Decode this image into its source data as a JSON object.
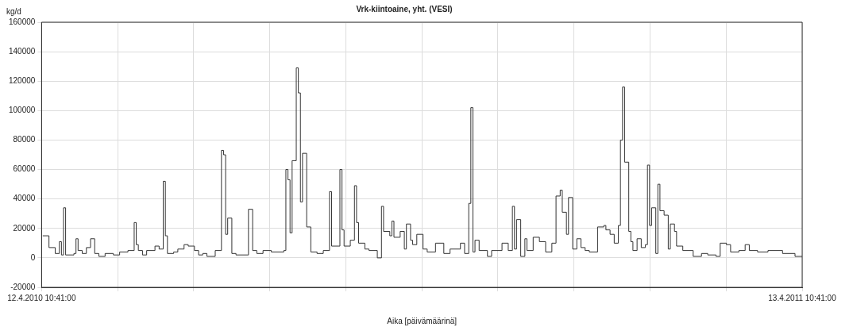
{
  "chart_data": {
    "type": "step",
    "title": "Vrk-kiintoaine, yht. (VESI)",
    "xlabel": "Aika [päivämäärinä]",
    "ylabel": "kg/d",
    "x": [
      "2010-04-13",
      "2010-04-16",
      "2010-04-19",
      "2010-04-21",
      "2010-04-22",
      "2010-04-23",
      "2010-04-24",
      "2010-04-28",
      "2010-04-29",
      "2010-04-30",
      "2010-05-02",
      "2010-05-04",
      "2010-05-06",
      "2010-05-08",
      "2010-05-10",
      "2010-05-13",
      "2010-05-17",
      "2010-05-20",
      "2010-05-24",
      "2010-05-27",
      "2010-05-28",
      "2010-05-29",
      "2010-05-31",
      "2010-06-02",
      "2010-06-06",
      "2010-06-08",
      "2010-06-10",
      "2010-06-11",
      "2010-06-12",
      "2010-06-15",
      "2010-06-17",
      "2010-06-20",
      "2010-06-22",
      "2010-06-25",
      "2010-06-27",
      "2010-06-29",
      "2010-07-01",
      "2010-07-05",
      "2010-07-08",
      "2010-07-09",
      "2010-07-10",
      "2010-07-11",
      "2010-07-13",
      "2010-07-15",
      "2010-07-21",
      "2010-07-23",
      "2010-07-25",
      "2010-07-28",
      "2010-08-01",
      "2010-08-07",
      "2010-08-08",
      "2010-08-09",
      "2010-08-10",
      "2010-08-11",
      "2010-08-13",
      "2010-08-14",
      "2010-08-15",
      "2010-08-16",
      "2010-08-18",
      "2010-08-20",
      "2010-08-23",
      "2010-08-26",
      "2010-08-29",
      "2010-08-30",
      "2010-09-03",
      "2010-09-04",
      "2010-09-05",
      "2010-09-08",
      "2010-09-10",
      "2010-09-11",
      "2010-09-12",
      "2010-09-15",
      "2010-09-17",
      "2010-09-21",
      "2010-09-23",
      "2010-09-24",
      "2010-09-27",
      "2010-09-28",
      "2010-09-29",
      "2010-10-02",
      "2010-10-04",
      "2010-10-05",
      "2010-10-07",
      "2010-10-08",
      "2010-10-10",
      "2010-10-13",
      "2010-10-15",
      "2010-10-19",
      "2010-10-23",
      "2010-10-26",
      "2010-10-31",
      "2010-11-02",
      "2010-11-04",
      "2010-11-05",
      "2010-11-06",
      "2010-11-07",
      "2010-11-09",
      "2010-11-13",
      "2010-11-15",
      "2010-11-20",
      "2010-11-23",
      "2010-11-25",
      "2010-11-26",
      "2010-11-27",
      "2010-11-29",
      "2010-12-01",
      "2010-12-02",
      "2010-12-05",
      "2010-12-08",
      "2010-12-11",
      "2010-12-14",
      "2010-12-16",
      "2010-12-18",
      "2010-12-19",
      "2010-12-21",
      "2010-12-22",
      "2010-12-24",
      "2010-12-26",
      "2010-12-28",
      "2010-12-30",
      "2011-01-01",
      "2011-01-05",
      "2011-01-08",
      "2011-01-09",
      "2011-01-11",
      "2011-01-13",
      "2011-01-15",
      "2011-01-16",
      "2011-01-17",
      "2011-01-18",
      "2011-01-20",
      "2011-01-21",
      "2011-01-22",
      "2011-01-24",
      "2011-01-26",
      "2011-01-28",
      "2011-01-29",
      "2011-01-30",
      "2011-01-31",
      "2011-02-02",
      "2011-02-03",
      "2011-02-04",
      "2011-02-06",
      "2011-02-08",
      "2011-02-09",
      "2011-02-11",
      "2011-02-12",
      "2011-02-15",
      "2011-02-20",
      "2011-02-24",
      "2011-02-27",
      "2011-03-03",
      "2011-03-05",
      "2011-03-08",
      "2011-03-10",
      "2011-03-14",
      "2011-03-17",
      "2011-03-19",
      "2011-03-23",
      "2011-03-28",
      "2011-04-04",
      "2011-04-10",
      "2011-04-13T10:41"
    ],
    "series": [
      {
        "color": "#333333",
        "values": [
          15000,
          7000,
          3000,
          11000,
          2000,
          34000,
          2000,
          3000,
          13000,
          5000,
          3000,
          7000,
          13000,
          3000,
          1000,
          3000,
          2000,
          4000,
          5000,
          24000,
          9000,
          5000,
          2000,
          5000,
          8000,
          6000,
          52000,
          15000,
          3000,
          4000,
          6000,
          9000,
          8000,
          5000,
          2000,
          3000,
          1000,
          5000,
          73000,
          70000,
          16000,
          27000,
          3000,
          2000,
          33000,
          5000,
          3000,
          5000,
          4000,
          5000,
          60000,
          53000,
          17000,
          66000,
          129000,
          112000,
          38000,
          71000,
          21000,
          4000,
          3000,
          5000,
          45000,
          8000,
          60000,
          19000,
          8000,
          12000,
          49000,
          24000,
          10000,
          6000,
          5000,
          0,
          35000,
          18000,
          15000,
          25000,
          14000,
          18000,
          6000,
          23000,
          12000,
          9000,
          16000,
          6000,
          4000,
          10000,
          3000,
          6000,
          10000,
          3000,
          37000,
          102000,
          4000,
          12000,
          5000,
          1000,
          5000,
          10000,
          5000,
          35000,
          6000,
          26000,
          1000,
          13000,
          5000,
          14000,
          11000,
          4000,
          10000,
          42000,
          46000,
          31000,
          16000,
          41000,
          6000,
          13000,
          7000,
          5000,
          4000,
          21000,
          22000,
          19000,
          16000,
          10000,
          22000,
          80000,
          116000,
          65000,
          18000,
          11000,
          5000,
          13000,
          7000,
          9000,
          63000,
          22000,
          34000,
          3000,
          50000,
          32000,
          29000,
          6000,
          23000,
          18000,
          8000,
          5000,
          1000,
          3000,
          2000,
          1000,
          10000,
          9000,
          4000,
          5000,
          9000,
          5000,
          4000,
          5000,
          3000,
          1000,
          1000
        ]
      }
    ],
    "xlim": [
      "2010-04-12T10:41",
      "2011-04-13T10:41"
    ],
    "xticks": [
      {
        "value": "2010-04-12T10:41",
        "label": "12.4.2010 10:41:00"
      },
      {
        "value": "2010-05-19T01:05",
        "label": null
      },
      {
        "value": "2010-06-24T15:29",
        "label": null
      },
      {
        "value": "2010-07-31T05:53",
        "label": null
      },
      {
        "value": "2010-09-05T20:17",
        "label": null
      },
      {
        "value": "2010-10-12T10:41",
        "label": null
      },
      {
        "value": "2010-11-18T01:05",
        "label": null
      },
      {
        "value": "2010-12-24T15:29",
        "label": null
      },
      {
        "value": "2011-01-30T05:53",
        "label": null
      },
      {
        "value": "2011-03-07T20:17",
        "label": null
      },
      {
        "value": "2011-04-13T10:41",
        "label": "13.4.2011 10:41:00"
      }
    ],
    "ylim": [
      -20000,
      160000
    ],
    "yticks": [
      -20000,
      0,
      20000,
      40000,
      60000,
      80000,
      100000,
      120000,
      140000,
      160000
    ],
    "grid": true,
    "legend": false,
    "marker": "none",
    "line_style": "solid"
  }
}
